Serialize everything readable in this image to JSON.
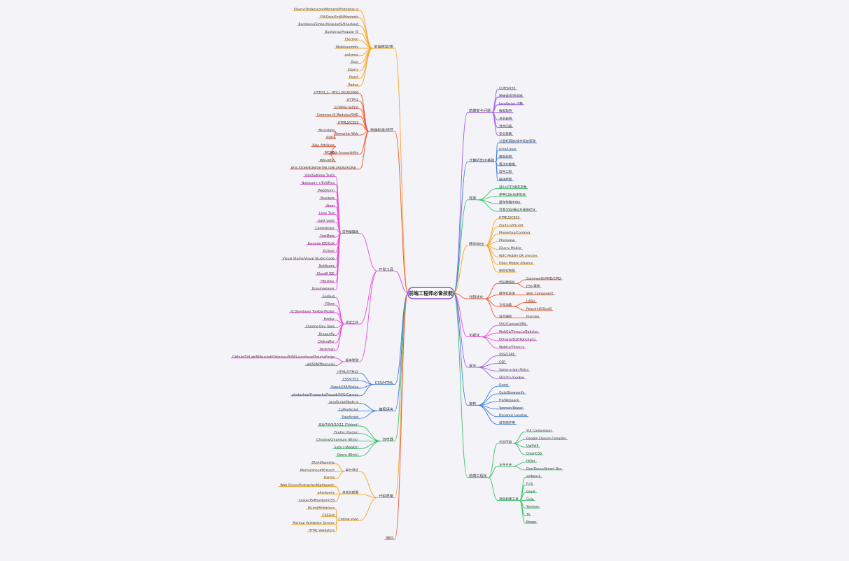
{
  "root": "前端工程师必备技能",
  "left": [
    {
      "label": "前端框架/库",
      "children": [
        {
          "label": "jQuery/Underscore/Moment/Prototype.js"
        },
        {
          "label": "YUI/Dojo/ExtJS/Mootools"
        },
        {
          "label": "Backbone/Ember/AngularJS/Knockout"
        },
        {
          "label": "Bootstrap/Angular JS"
        },
        {
          "label": "Electron"
        },
        {
          "label": "WebAssembly"
        },
        {
          "label": "polymer"
        },
        {
          "label": "Dojo"
        },
        {
          "label": "jQuery"
        },
        {
          "label": "React"
        },
        {
          "label": "Redux"
        }
      ]
    },
    {
      "label": "前端标准/规范",
      "children": [
        {
          "label": "HTTP/1.1 - RFCs 2616/2068"
        },
        {
          "label": "HTTP/2"
        },
        {
          "label": "ECMAScript5/6"
        },
        {
          "label": "Common JS Modules/AMD"
        },
        {
          "label": "HTML5/CSS3"
        },
        {
          "label": "Semantic Web",
          "children": [
            {
              "label": "Microdata"
            },
            {
              "label": "RDFa"
            }
          ]
        },
        {
          "label": "Web Accessibility",
          "children": [
            {
              "label": "Role Attribute"
            },
            {
              "label": "WCAG"
            },
            {
              "label": "WAI-ARIA"
            }
          ]
        },
        {
          "label": "W3C/DOM/BOM/XHTML/XML/JSON/JSONP..."
        }
      ]
    },
    {
      "label": "开发工具",
      "children": [
        {
          "label": "常用编辑器",
          "children": [
            {
              "label": "Vim/Sublime Text2"
            },
            {
              "label": "Notepad++/EditPlus"
            },
            {
              "label": "WebStorm"
            },
            {
              "label": "Brackets"
            },
            {
              "label": "Atom"
            },
            {
              "label": "Lime Text"
            },
            {
              "label": "Light table"
            },
            {
              "label": "Codelobster"
            },
            {
              "label": "TextMate"
            },
            {
              "label": "Komodo IDE/Edit"
            },
            {
              "label": "Eclipse"
            },
            {
              "label": "Visual Studio/Visual Studio Code"
            },
            {
              "label": "NetBeans"
            },
            {
              "label": "Cloud9 IDE"
            },
            {
              "label": "HBuilder"
            },
            {
              "label": "Dreamweaver"
            }
          ]
        },
        {
          "label": "调试工具",
          "children": [
            {
              "label": "Firebug"
            },
            {
              "label": "YSlow"
            },
            {
              "label": "IE Developer Toolbar/Tester"
            },
            {
              "label": "Fiddler"
            },
            {
              "label": "Chrome Dev Tools"
            },
            {
              "label": "Dragonfly"
            },
            {
              "label": "DebugBar"
            },
            {
              "label": "Venkman"
            }
          ]
        },
        {
          "label": "版本管理",
          "children": [
            {
              "label": "GitHub/GitLab/Bitbucket/Gitorious/SVN/Launchpad/SourceForge"
            },
            {
              "label": "git/SVN/Mercurial"
            }
          ]
        }
      ]
    },
    {
      "label": "CSS/HTML",
      "children": [
        {
          "label": "HTML/HTML5"
        },
        {
          "label": "CSS/CSS3"
        },
        {
          "label": "Sass/LESS/Stylus"
        },
        {
          "label": "photoshop/Fireworks/Pxcook/SVG/Canvas"
        }
      ]
    },
    {
      "label": "编程语言",
      "children": [
        {
          "label": "JavaScript/Node.js"
        },
        {
          "label": "CoffeeScript"
        },
        {
          "label": "TypeScript"
        }
      ]
    },
    {
      "label": "浏览器",
      "children": [
        {
          "label": "IE6/7/8/9/10/11 (Trident)"
        },
        {
          "label": "Firefox (Gecko)"
        },
        {
          "label": "Chrome/Chromium (Blink)"
        },
        {
          "label": "Safari (WebKit)"
        },
        {
          "label": "Opera (Blink)"
        }
      ]
    },
    {
      "label": "代码质量",
      "children": [
        {
          "label": "单元测试",
          "children": [
            {
              "label": "QUnit/Jasmine"
            },
            {
              "label": "Mocha/should/Expect"
            },
            {
              "label": "Karma"
            }
          ]
        },
        {
          "label": "自动化部署",
          "children": [
            {
              "label": "Web Driver/Protractor/Nightwatch"
            },
            {
              "label": "phantomjs"
            },
            {
              "label": "CasperJS/PhantomCSS"
            }
          ]
        },
        {
          "label": "Coding style",
          "children": [
            {
              "label": "JSLint/JSHint/jscs"
            },
            {
              "label": "CSSLint"
            },
            {
              "label": "Markup Validation Service"
            },
            {
              "label": "HTML Validators"
            }
          ]
        }
      ]
    },
    {
      "label": "SEO"
    }
  ],
  "right": [
    {
      "label": "前端安全问题",
      "children": [
        {
          "label": "CORS/XSS"
        },
        {
          "label": "跨域请求/防盗链"
        },
        {
          "label": "JavaScript 沙箱"
        },
        {
          "label": "数据劫持"
        },
        {
          "label": "点击劫持"
        },
        {
          "label": "混合内容"
        },
        {
          "label": "安全策略"
        }
      ]
    },
    {
      "label": "计算机知识基础",
      "children": [
        {
          "label": "计算机网络/操作系统原理"
        },
        {
          "label": "Unix/Linux"
        },
        {
          "label": "数据结构"
        },
        {
          "label": "算法与数据"
        },
        {
          "label": "软件工程"
        },
        {
          "label": "编译原理"
        }
      ]
    },
    {
      "label": "性能",
      "children": [
        {
          "label": "减少HTTP请求次数"
        },
        {
          "label": "使用CDN加速资源"
        },
        {
          "label": "缓存策略/PWA"
        },
        {
          "label": "页面渲染/重绘与重排优化"
        }
      ]
    },
    {
      "label": "移动Web",
      "children": [
        {
          "label": "HTML5/CSS3"
        },
        {
          "label": "Zepto.js/iScroll"
        },
        {
          "label": "PhoneGap/Cordova"
        },
        {
          "label": "Phonegap"
        },
        {
          "label": "jQuery Mobile"
        },
        {
          "label": "W3C Mobile OK checker"
        },
        {
          "label": "Open Mobile Alliance"
        },
        {
          "label": "响应式布局"
        }
      ]
    },
    {
      "label": "代码优化",
      "children": [
        {
          "label": "代码模块化",
          "children": [
            {
              "label": "CommonJS/AMD/CMD"
            },
            {
              "label": "ES6 模块"
            }
          ]
        },
        {
          "label": "组件化开发",
          "children": [
            {
              "label": "Web Component"
            }
          ]
        },
        {
          "label": "文件加载",
          "children": [
            {
              "label": "LABjs"
            },
            {
              "label": "RequireJS/SeaJS"
            }
          ]
        },
        {
          "label": "异步编程",
          "children": [
            {
              "label": "Promise"
            }
          ]
        }
      ]
    },
    {
      "label": "可视化",
      "children": [
        {
          "label": "SVG/Canvas/VML"
        },
        {
          "label": "WebGL/Three.js/Babylon"
        },
        {
          "label": "ECharts/D3/Highcharts"
        },
        {
          "label": "WebGL/Three.js"
        }
      ]
    },
    {
      "label": "安全",
      "children": [
        {
          "label": "XSS/CSRF"
        },
        {
          "label": "CSP"
        },
        {
          "label": "Same-origin Policy"
        },
        {
          "label": "SQL注入/Cookie"
        }
      ]
    },
    {
      "label": "架构",
      "children": [
        {
          "label": "Grunt"
        },
        {
          "label": "Gulp/Browserify"
        },
        {
          "label": "Fis/Webpack"
        },
        {
          "label": "Yeoman/Bower"
        },
        {
          "label": "Dynamic Loading"
        },
        {
          "label": "单页面应用"
        }
      ]
    },
    {
      "label": "前端工程化",
      "children": [
        {
          "label": "代码压缩",
          "children": [
            {
              "label": "YUI Compressor"
            },
            {
              "label": "Google Closure Compiler"
            },
            {
              "label": "UglifyJS"
            },
            {
              "label": "CleanCSS"
            }
          ]
        },
        {
          "label": "文件合并",
          "children": [
            {
              "label": "JSDoc"
            },
            {
              "label": "Dox/Docco/Smart Doc"
            }
          ]
        },
        {
          "label": "项目构建工具",
          "children": [
            {
              "label": "webpack"
            },
            {
              "label": "F.I.S"
            },
            {
              "label": "Grunt"
            },
            {
              "label": "Gulp"
            },
            {
              "label": "Yeoman"
            },
            {
              "label": "Yo"
            },
            {
              "label": "Bower"
            }
          ]
        }
      ]
    }
  ]
}
